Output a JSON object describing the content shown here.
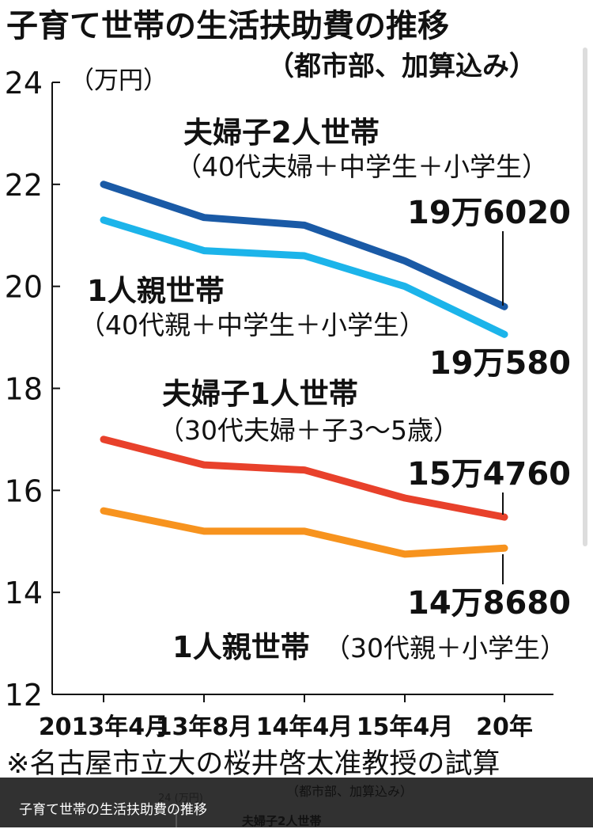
{
  "title": "子育て世帯の生活扶助費の推移",
  "subtitle": "（都市部、加算込み）",
  "unit": "（万円）",
  "footnote": "※名古屋市立大の桜井啓太准教授の試算",
  "caption": "子育て世帯の生活扶助費の推移",
  "ghost": {
    "subtitle": "（都市部、加算込み）",
    "unit": "24 (万円)",
    "series": "夫婦子2人世帯"
  },
  "chart_data": {
    "type": "line",
    "categories": [
      "2013年4月",
      "13年8月",
      "14年4月",
      "15年4月",
      "20年"
    ],
    "ylim": [
      12,
      24
    ],
    "yticks": [
      "24",
      "22",
      "20",
      "18",
      "16",
      "14",
      "12"
    ],
    "grid": false,
    "series": [
      {
        "name": "夫婦子2人世帯",
        "note": "（40代夫婦＋中学生＋小学生）",
        "end_label": "19万6020",
        "color": "#1a5aa6",
        "values": [
          22.0,
          21.35,
          21.2,
          20.5,
          19.602
        ]
      },
      {
        "name": "1人親世帯",
        "note": "（40代親＋中学生＋小学生）",
        "end_label": "19万580",
        "color": "#1cb4ea",
        "values": [
          21.3,
          20.7,
          20.6,
          20.0,
          19.058
        ]
      },
      {
        "name": "夫婦子1人世帯",
        "note": "（30代夫婦＋子3〜5歳）",
        "end_label": "15万4760",
        "color": "#e8412b",
        "values": [
          17.0,
          16.5,
          16.4,
          15.85,
          15.476
        ]
      },
      {
        "name": "1人親世帯",
        "note": "（30代親＋小学生）",
        "end_label": "14万8680",
        "color": "#f7931e",
        "values": [
          15.6,
          15.2,
          15.2,
          14.75,
          14.868
        ]
      }
    ]
  }
}
